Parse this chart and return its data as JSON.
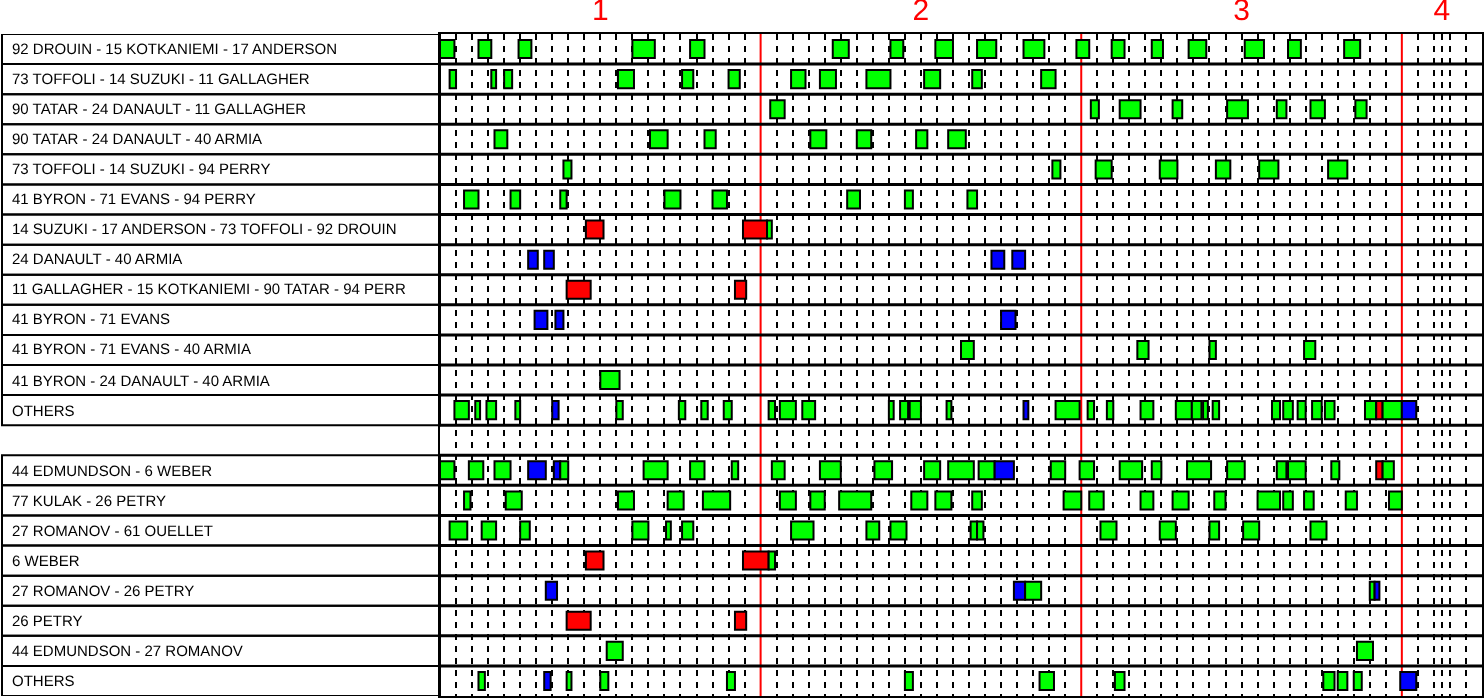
{
  "chart_data": {
    "type": "bar",
    "orientation": "horizontal",
    "grid": "x",
    "xlim": [
      0.5,
      3.75
    ],
    "xticks": [
      {
        "value": 0.55,
        "label": null
      },
      {
        "value": 0.6,
        "label": null
      },
      {
        "value": 0.65,
        "label": null
      },
      {
        "value": 0.7,
        "label": null
      },
      {
        "value": 0.75,
        "label": null
      },
      {
        "value": 0.8,
        "label": null
      },
      {
        "value": 0.85,
        "label": null
      },
      {
        "value": 0.9,
        "label": null
      },
      {
        "value": 0.95,
        "label": null
      },
      1,
      {
        "value": 1.05,
        "label": null
      },
      {
        "value": 1.1,
        "label": null
      },
      {
        "value": 1.15,
        "label": null
      },
      {
        "value": 1.2,
        "label": null
      },
      {
        "value": 1.25,
        "label": null
      },
      {
        "value": 1.3,
        "label": null
      },
      {
        "value": 1.35,
        "label": null
      },
      {
        "value": 1.4,
        "label": null
      },
      {
        "value": 1.45,
        "label": null
      },
      {
        "value": 1.55,
        "label": null
      },
      {
        "value": 1.6,
        "label": null
      },
      {
        "value": 1.65,
        "label": null
      },
      {
        "value": 1.7,
        "label": null
      },
      {
        "value": 1.75,
        "label": null
      },
      {
        "value": 1.8,
        "label": null
      },
      {
        "value": 1.85,
        "label": null
      },
      {
        "value": 1.9,
        "label": null
      },
      {
        "value": 1.95,
        "label": null
      },
      2,
      {
        "value": 2.05,
        "label": null
      },
      {
        "value": 2.1,
        "label": null
      },
      {
        "value": 2.15,
        "label": null
      },
      {
        "value": 2.2,
        "label": null
      },
      {
        "value": 2.25,
        "label": null
      },
      {
        "value": 2.3,
        "label": null
      },
      {
        "value": 2.35,
        "label": null
      },
      {
        "value": 2.4,
        "label": null
      },
      {
        "value": 2.45,
        "label": null
      },
      {
        "value": 2.55,
        "label": null
      },
      {
        "value": 2.6,
        "label": null
      },
      {
        "value": 2.65,
        "label": null
      },
      {
        "value": 2.7,
        "label": null
      },
      {
        "value": 2.75,
        "label": null
      },
      {
        "value": 2.8,
        "label": null
      },
      {
        "value": 2.85,
        "label": null
      },
      {
        "value": 2.9,
        "label": null
      },
      {
        "value": 2.95,
        "label": null
      },
      3,
      {
        "value": 3.05,
        "label": null
      },
      {
        "value": 3.1,
        "label": null
      },
      {
        "value": 3.15,
        "label": null
      },
      {
        "value": 3.2,
        "label": null
      },
      {
        "value": 3.25,
        "label": null
      },
      {
        "value": 3.3,
        "label": null
      },
      {
        "value": 3.35,
        "label": null
      },
      {
        "value": 3.4,
        "label": null
      },
      {
        "value": 3.45,
        "label": null
      },
      {
        "value": 3.55,
        "label": null
      },
      {
        "value": 3.6,
        "label": null
      },
      {
        "value": 3.625,
        "label": "4"
      },
      {
        "value": 3.65,
        "label": null
      },
      {
        "value": 3.7,
        "label": null
      }
    ],
    "ref_lines": [
      {
        "axis": "x",
        "value": 1.5,
        "color": "#ff0000"
      },
      {
        "axis": "x",
        "value": 2.5,
        "color": "#ff0000"
      },
      {
        "axis": "x",
        "value": 3.5,
        "color": "#ff0000"
      }
    ],
    "categories": [
      "92 DROUIN - 15 KOTKANIEMI - 17 ANDERSON",
      "73 TOFFOLI - 14 SUZUKI - 11 GALLAGHER",
      "90 TATAR - 24 DANAULT - 11 GALLAGHER",
      "90 TATAR - 24 DANAULT - 40 ARMIA",
      "73 TOFFOLI - 14 SUZUKI - 94 PERRY",
      "41 BYRON - 71 EVANS - 94 PERRY",
      "14 SUZUKI - 17 ANDERSON - 73 TOFFOLI - 92 DROUIN",
      "24 DANAULT - 40 ARMIA",
      "11 GALLAGHER - 15 KOTKANIEMI - 90 TATAR - 94 PERR",
      "41 BYRON - 71 EVANS",
      "41 BYRON - 71 EVANS - 40 ARMIA",
      "41 BYRON - 24 DANAULT - 40 ARMIA",
      "OTHERS",
      null,
      "44 EDMUNDSON - 6 WEBER",
      "77 KULAK - 26 PETRY",
      "27 ROMANOV - 61 OUELLET",
      "6 WEBER",
      "27 ROMANOV - 26 PETRY",
      "26 PETRY",
      "44 EDMUNDSON - 27 ROMANOV",
      "OTHERS"
    ],
    "series": [
      {
        "colors": [
          "#00ff00",
          "#00ff00",
          "#00ff00",
          "#00ff00",
          "#00ff00",
          "#00ff00",
          "#ff0000",
          "#0000ff",
          "#ff0000",
          "#0000ff",
          "#00ff00",
          "#00ff00",
          "#00ff00",
          null,
          "#00ff00",
          "#00ff00",
          "#00ff00",
          "#ff0000",
          "#0000ff",
          "#ff0000",
          "#00ff00",
          "#00ff00"
        ],
        "base": [
          0.5,
          0.53,
          1.53,
          0.67,
          0.885,
          0.575,
          0.955,
          0.775,
          0.895,
          0.795,
          2.125,
          1.0,
          0.545,
          null,
          0.5,
          0.575,
          0.53,
          0.955,
          0.83,
          0.895,
          1.02,
          0.62
        ],
        "values": [
          0.045,
          0.02,
          0.045,
          0.04,
          0.025,
          0.045,
          0.055,
          0.03,
          0.075,
          0.04,
          0.04,
          0.06,
          0.045,
          null,
          0.045,
          0.02,
          0.055,
          0.055,
          0.035,
          0.075,
          0.05,
          0.02
        ]
      },
      {
        "colors": [
          "#00ff00",
          "#00ff00",
          "#00ff00",
          "#00ff00",
          "#00ff00",
          "#00ff00",
          "#ff0000",
          "#0000ff",
          "#ff0000",
          "#0000ff",
          "#00ff00",
          null,
          "#00ff00",
          null,
          "#00ff00",
          "#00ff00",
          "#00ff00",
          "#ff0000",
          "#0000ff",
          "#ff0000",
          "#00ff00",
          "#0000ff"
        ],
        "base": [
          0.62,
          0.66,
          2.53,
          1.155,
          2.41,
          0.72,
          1.445,
          0.825,
          1.42,
          0.86,
          2.675,
          null,
          0.61,
          null,
          0.59,
          0.705,
          0.63,
          1.445,
          2.29,
          1.42,
          3.36,
          0.825
        ],
        "values": [
          0.04,
          0.015,
          0.025,
          0.055,
          0.025,
          0.03,
          0.075,
          0.03,
          0.035,
          0.025,
          0.035,
          null,
          0.015,
          null,
          0.045,
          0.05,
          0.045,
          0.08,
          0.035,
          0.035,
          0.05,
          0.02
        ]
      },
      {
        "colors": [
          "#00ff00",
          "#00ff00",
          "#00ff00",
          "#00ff00",
          "#00ff00",
          "#00ff00",
          "#00ff00",
          "#0000ff",
          null,
          "#0000ff",
          "#00ff00",
          null,
          "#00ff00",
          null,
          "#00ff00",
          "#00ff00",
          "#00ff00",
          "#00ff00",
          "#00ff00",
          null,
          null,
          "#00ff00"
        ],
        "base": [
          0.745,
          0.7,
          2.62,
          1.325,
          2.545,
          0.875,
          1.52,
          2.22,
          null,
          2.25,
          2.9,
          null,
          0.645,
          null,
          0.67,
          1.055,
          0.75,
          1.525,
          2.325,
          null,
          null,
          0.895
        ],
        "values": [
          0.04,
          0.025,
          0.065,
          0.035,
          0.05,
          0.02,
          0.015,
          0.04,
          null,
          0.045,
          0.02,
          null,
          0.03,
          null,
          0.05,
          0.05,
          0.03,
          0.02,
          0.05,
          null,
          null,
          0.015
        ]
      },
      {
        "colors": [
          "#00ff00",
          "#00ff00",
          "#00ff00",
          "#00ff00",
          "#00ff00",
          "#00ff00",
          null,
          "#0000ff",
          null,
          null,
          "#00ff00",
          null,
          "#00ff00",
          null,
          "#0000ff",
          "#00ff00",
          "#00ff00",
          null,
          "#00ff00",
          null,
          null,
          "#00ff00"
        ],
        "base": [
          1.1,
          1.055,
          2.785,
          1.655,
          2.745,
          1.2,
          null,
          2.285,
          null,
          null,
          3.195,
          null,
          0.735,
          null,
          0.775,
          1.21,
          1.1,
          null,
          3.4,
          null,
          null,
          1.0
        ],
        "values": [
          0.07,
          0.05,
          0.03,
          0.05,
          0.055,
          0.05,
          null,
          0.04,
          null,
          null,
          0.035,
          null,
          0.015,
          null,
          0.055,
          0.05,
          0.05,
          null,
          0.015,
          null,
          null,
          0.025
        ]
      },
      {
        "colors": [
          "#00ff00",
          "#00ff00",
          "#00ff00",
          "#00ff00",
          "#00ff00",
          "#00ff00",
          null,
          null,
          null,
          null,
          null,
          null,
          "#0000ff",
          null,
          "#0000ff",
          "#00ff00",
          "#00ff00",
          null,
          "#0000ff",
          null,
          null,
          "#00ff00"
        ],
        "base": [
          1.28,
          1.255,
          2.955,
          1.8,
          2.92,
          1.35,
          null,
          null,
          null,
          null,
          null,
          null,
          0.85,
          null,
          0.855,
          1.32,
          1.205,
          null,
          3.415,
          null,
          null,
          1.395
        ],
        "values": [
          0.045,
          0.035,
          0.065,
          0.045,
          0.045,
          0.045,
          null,
          null,
          null,
          null,
          null,
          null,
          0.02,
          null,
          0.02,
          0.085,
          0.015,
          null,
          0.015,
          null,
          null,
          0.025
        ]
      },
      {
        "color": "#00ff00",
        "base": [
          1.725,
          1.4,
          3.11,
          1.985,
          3.055,
          1.77,
          null,
          null,
          null,
          null,
          null,
          null,
          1.05,
          null,
          0.875,
          1.56,
          1.255,
          null,
          null,
          null,
          null,
          1.95
        ],
        "values": [
          0.05,
          0.035,
          0.03,
          0.035,
          0.06,
          0.04,
          null,
          null,
          null,
          null,
          null,
          null,
          0.02,
          null,
          0.025,
          0.05,
          0.035,
          null,
          null,
          null,
          null,
          0.025
        ]
      },
      {
        "color": "#00ff00",
        "base": [
          1.905,
          1.595,
          3.215,
          2.085,
          3.27,
          1.95,
          null,
          null,
          null,
          null,
          null,
          null,
          1.245,
          null,
          1.135,
          1.655,
          1.595,
          null,
          null,
          null,
          null,
          2.37
        ],
        "values": [
          0.04,
          0.045,
          0.045,
          0.055,
          0.06,
          0.025,
          null,
          null,
          null,
          null,
          null,
          null,
          0.02,
          null,
          0.075,
          0.045,
          0.07,
          null,
          null,
          null,
          null,
          0.045
        ]
      },
      {
        "color": "#00ff00",
        "base": [
          2.045,
          1.685,
          3.355,
          null,
          null,
          2.145,
          null,
          null,
          null,
          null,
          null,
          null,
          1.315,
          null,
          1.28,
          1.745,
          1.83,
          null,
          null,
          null,
          null,
          2.605
        ],
        "values": [
          0.055,
          0.05,
          0.035,
          null,
          null,
          0.03,
          null,
          null,
          null,
          null,
          null,
          null,
          0.02,
          null,
          0.045,
          0.1,
          0.04,
          null,
          null,
          null,
          null,
          0.03
        ]
      },
      {
        "color": "#00ff00",
        "base": [
          2.175,
          1.83,
          null,
          null,
          null,
          null,
          null,
          null,
          null,
          null,
          null,
          null,
          1.385,
          null,
          1.41,
          1.97,
          1.905,
          null,
          null,
          null,
          null,
          3.255
        ],
        "values": [
          0.06,
          0.075,
          null,
          null,
          null,
          null,
          null,
          null,
          null,
          null,
          null,
          null,
          0.025,
          null,
          0.02,
          0.05,
          0.05,
          null,
          null,
          null,
          null,
          0.035
        ]
      },
      {
        "color": "#00ff00",
        "base": [
          2.32,
          2.01,
          null,
          null,
          null,
          null,
          null,
          null,
          null,
          null,
          null,
          null,
          1.525,
          null,
          1.535,
          2.045,
          2.155,
          null,
          null,
          null,
          null,
          3.3
        ],
        "values": [
          0.065,
          0.05,
          null,
          null,
          null,
          null,
          null,
          null,
          null,
          null,
          null,
          null,
          0.02,
          null,
          0.04,
          0.05,
          0.02,
          null,
          null,
          null,
          null,
          0.03
        ]
      },
      {
        "color": "#00ff00",
        "base": [
          2.485,
          2.16,
          null,
          null,
          null,
          null,
          null,
          null,
          null,
          null,
          null,
          null,
          1.56,
          null,
          1.685,
          2.16,
          2.175,
          null,
          null,
          null,
          null,
          3.35
        ],
        "values": [
          0.04,
          0.03,
          null,
          null,
          null,
          null,
          null,
          null,
          null,
          null,
          null,
          null,
          0.05,
          null,
          0.065,
          0.03,
          0.02,
          null,
          null,
          null,
          null,
          0.025
        ]
      },
      {
        "colors": [
          "#00ff00",
          "#00ff00",
          null,
          null,
          null,
          null,
          null,
          null,
          null,
          null,
          null,
          null,
          "#00ff00",
          null,
          "#00ff00",
          "#00ff00",
          "#00ff00",
          null,
          null,
          null,
          null,
          "#0000ff"
        ],
        "base": [
          2.595,
          2.375,
          null,
          null,
          null,
          null,
          null,
          null,
          null,
          null,
          null,
          null,
          1.63,
          null,
          1.855,
          2.445,
          2.56,
          null,
          null,
          null,
          null,
          3.495
        ],
        "values": [
          0.04,
          0.045,
          null,
          null,
          null,
          null,
          null,
          null,
          null,
          null,
          null,
          null,
          0.04,
          null,
          0.055,
          0.055,
          0.05,
          null,
          null,
          null,
          null,
          0.05
        ]
      },
      {
        "color": "#00ff00",
        "base": [
          2.72,
          null,
          null,
          null,
          null,
          null,
          null,
          null,
          null,
          null,
          null,
          null,
          1.9,
          null,
          2.01,
          2.525,
          2.745,
          null,
          null,
          null,
          null,
          null
        ],
        "values": [
          0.035,
          null,
          null,
          null,
          null,
          null,
          null,
          null,
          null,
          null,
          null,
          null,
          0.015,
          null,
          0.05,
          0.045,
          0.05,
          null,
          null,
          null,
          null,
          null
        ]
      },
      {
        "color": "#00ff00",
        "base": [
          2.835,
          null,
          null,
          null,
          null,
          null,
          null,
          null,
          null,
          null,
          null,
          null,
          1.935,
          null,
          2.085,
          2.685,
          2.9,
          null,
          null,
          null,
          null,
          null
        ],
        "values": [
          0.055,
          null,
          null,
          null,
          null,
          null,
          null,
          null,
          null,
          null,
          null,
          null,
          0.025,
          null,
          0.08,
          0.04,
          0.03,
          null,
          null,
          null,
          null,
          null
        ]
      },
      {
        "color": "#00ff00",
        "base": [
          3.01,
          null,
          null,
          null,
          null,
          null,
          null,
          null,
          null,
          null,
          null,
          null,
          1.965,
          null,
          2.18,
          2.785,
          3.005,
          null,
          null,
          null,
          null,
          null
        ],
        "values": [
          0.06,
          null,
          null,
          null,
          null,
          null,
          null,
          null,
          null,
          null,
          null,
          null,
          0.035,
          null,
          0.05,
          0.05,
          0.05,
          null,
          null,
          null,
          null,
          null
        ]
      },
      {
        "colors": [
          "#00ff00",
          null,
          null,
          null,
          null,
          null,
          null,
          null,
          null,
          null,
          null,
          null,
          "#00ff00",
          null,
          "#0000ff",
          "#00ff00",
          "#00ff00",
          null,
          null,
          null,
          null,
          null
        ],
        "base": [
          3.145,
          null,
          null,
          null,
          null,
          null,
          null,
          null,
          null,
          null,
          null,
          null,
          2.08,
          null,
          2.23,
          2.915,
          3.215,
          null,
          null,
          null,
          null,
          null
        ],
        "values": [
          0.04,
          null,
          null,
          null,
          null,
          null,
          null,
          null,
          null,
          null,
          null,
          null,
          0.015,
          null,
          0.06,
          0.035,
          0.05,
          null,
          null,
          null,
          null,
          null
        ]
      },
      {
        "colors": [
          "#00ff00",
          null,
          null,
          null,
          null,
          null,
          null,
          null,
          null,
          null,
          null,
          null,
          "#0000ff",
          null,
          "#00ff00",
          "#00ff00",
          null,
          null,
          null,
          null,
          null,
          null
        ],
        "base": [
          3.32,
          null,
          null,
          null,
          null,
          null,
          null,
          null,
          null,
          null,
          null,
          null,
          2.32,
          null,
          2.405,
          3.05,
          null,
          null,
          null,
          null,
          null,
          null
        ],
        "values": [
          0.05,
          null,
          null,
          null,
          null,
          null,
          null,
          null,
          null,
          null,
          null,
          null,
          0.015,
          null,
          0.045,
          0.07,
          null,
          null,
          null,
          null,
          null,
          null
        ]
      },
      {
        "color": "#00ff00",
        "base": [
          null,
          null,
          null,
          null,
          null,
          null,
          null,
          null,
          null,
          null,
          null,
          null,
          2.42,
          null,
          2.495,
          3.13,
          null,
          null,
          null,
          null,
          null,
          null
        ],
        "values": [
          null,
          null,
          null,
          null,
          null,
          null,
          null,
          null,
          null,
          null,
          null,
          null,
          0.075,
          null,
          0.045,
          0.03,
          null,
          null,
          null,
          null,
          null,
          null
        ]
      },
      {
        "color": "#00ff00",
        "base": [
          null,
          null,
          null,
          null,
          null,
          null,
          null,
          null,
          null,
          null,
          null,
          null,
          2.52,
          null,
          2.62,
          3.195,
          null,
          null,
          null,
          null,
          null,
          null
        ],
        "values": [
          null,
          null,
          null,
          null,
          null,
          null,
          null,
          null,
          null,
          null,
          null,
          null,
          0.02,
          null,
          0.07,
          0.03,
          null,
          null,
          null,
          null,
          null,
          null
        ]
      },
      {
        "color": "#00ff00",
        "base": [
          null,
          null,
          null,
          null,
          null,
          null,
          null,
          null,
          null,
          null,
          null,
          null,
          2.58,
          null,
          2.72,
          3.325,
          null,
          null,
          null,
          null,
          null,
          null
        ],
        "values": [
          null,
          null,
          null,
          null,
          null,
          null,
          null,
          null,
          null,
          null,
          null,
          null,
          0.02,
          null,
          0.03,
          0.035,
          null,
          null,
          null,
          null,
          null,
          null
        ]
      },
      {
        "color": "#00ff00",
        "base": [
          null,
          null,
          null,
          null,
          null,
          null,
          null,
          null,
          null,
          null,
          null,
          null,
          2.685,
          null,
          2.83,
          3.46,
          null,
          null,
          null,
          null,
          null,
          null
        ],
        "values": [
          null,
          null,
          null,
          null,
          null,
          null,
          null,
          null,
          null,
          null,
          null,
          null,
          0.04,
          null,
          0.075,
          0.04,
          null,
          null,
          null,
          null,
          null,
          null
        ]
      },
      {
        "color": "#00ff00",
        "base": [
          null,
          null,
          null,
          null,
          null,
          null,
          null,
          null,
          null,
          null,
          null,
          null,
          2.795,
          null,
          2.955,
          null,
          null,
          null,
          null,
          null,
          null,
          null
        ],
        "values": [
          null,
          null,
          null,
          null,
          null,
          null,
          null,
          null,
          null,
          null,
          null,
          null,
          0.05,
          null,
          0.055,
          null,
          null,
          null,
          null,
          null,
          null,
          null
        ]
      },
      {
        "color": "#00ff00",
        "base": [
          null,
          null,
          null,
          null,
          null,
          null,
          null,
          null,
          null,
          null,
          null,
          null,
          2.845,
          null,
          3.11,
          null,
          null,
          null,
          null,
          null,
          null,
          null
        ],
        "values": [
          null,
          null,
          null,
          null,
          null,
          null,
          null,
          null,
          null,
          null,
          null,
          null,
          0.03,
          null,
          0.03,
          null,
          null,
          null,
          null,
          null,
          null,
          null
        ]
      },
      {
        "color": "#00ff00",
        "base": [
          null,
          null,
          null,
          null,
          null,
          null,
          null,
          null,
          null,
          null,
          null,
          null,
          2.88,
          null,
          3.145,
          null,
          null,
          null,
          null,
          null,
          null,
          null
        ],
        "values": [
          null,
          null,
          null,
          null,
          null,
          null,
          null,
          null,
          null,
          null,
          null,
          null,
          0.015,
          null,
          0.055,
          null,
          null,
          null,
          null,
          null,
          null,
          null
        ]
      },
      {
        "color": "#00ff00",
        "base": [
          null,
          null,
          null,
          null,
          null,
          null,
          null,
          null,
          null,
          null,
          null,
          null,
          2.91,
          null,
          3.28,
          null,
          null,
          null,
          null,
          null,
          null,
          null
        ],
        "values": [
          null,
          null,
          null,
          null,
          null,
          null,
          null,
          null,
          null,
          null,
          null,
          null,
          0.02,
          null,
          0.025,
          null,
          null,
          null,
          null,
          null,
          null,
          null
        ]
      },
      {
        "colors": [
          null,
          null,
          null,
          null,
          null,
          null,
          null,
          null,
          null,
          null,
          null,
          null,
          "#00ff00",
          null,
          "#ff0000",
          null,
          null,
          null,
          null,
          null,
          null,
          null
        ],
        "base": [
          null,
          null,
          null,
          null,
          null,
          null,
          null,
          null,
          null,
          null,
          null,
          null,
          3.095,
          null,
          3.42,
          null,
          null,
          null,
          null,
          null,
          null,
          null
        ],
        "values": [
          null,
          null,
          null,
          null,
          null,
          null,
          null,
          null,
          null,
          null,
          null,
          null,
          0.025,
          null,
          0.02,
          null,
          null,
          null,
          null,
          null,
          null,
          null
        ]
      },
      {
        "color": "#00ff00",
        "base": [
          null,
          null,
          null,
          null,
          null,
          null,
          null,
          null,
          null,
          null,
          null,
          null,
          3.13,
          null,
          3.44,
          null,
          null,
          null,
          null,
          null,
          null,
          null
        ],
        "values": [
          null,
          null,
          null,
          null,
          null,
          null,
          null,
          null,
          null,
          null,
          null,
          null,
          0.03,
          null,
          0.035,
          null,
          null,
          null,
          null,
          null,
          null,
          null
        ]
      },
      {
        "color": "#00ff00",
        "base": [
          null,
          null,
          null,
          null,
          null,
          null,
          null,
          null,
          null,
          null,
          null,
          null,
          3.175,
          null,
          null,
          null,
          null,
          null,
          null,
          null,
          null,
          null
        ],
        "values": [
          null,
          null,
          null,
          null,
          null,
          null,
          null,
          null,
          null,
          null,
          null,
          null,
          0.025,
          null,
          null,
          null,
          null,
          null,
          null,
          null,
          null,
          null
        ]
      },
      {
        "color": "#00ff00",
        "base": [
          null,
          null,
          null,
          null,
          null,
          null,
          null,
          null,
          null,
          null,
          null,
          null,
          3.22,
          null,
          null,
          null,
          null,
          null,
          null,
          null,
          null,
          null
        ],
        "values": [
          null,
          null,
          null,
          null,
          null,
          null,
          null,
          null,
          null,
          null,
          null,
          null,
          0.03,
          null,
          null,
          null,
          null,
          null,
          null,
          null,
          null,
          null
        ]
      },
      {
        "color": "#00ff00",
        "base": [
          null,
          null,
          null,
          null,
          null,
          null,
          null,
          null,
          null,
          null,
          null,
          null,
          3.26,
          null,
          null,
          null,
          null,
          null,
          null,
          null,
          null,
          null
        ],
        "values": [
          null,
          null,
          null,
          null,
          null,
          null,
          null,
          null,
          null,
          null,
          null,
          null,
          0.03,
          null,
          null,
          null,
          null,
          null,
          null,
          null,
          null,
          null
        ]
      },
      {
        "color": "#00ff00",
        "base": [
          null,
          null,
          null,
          null,
          null,
          null,
          null,
          null,
          null,
          null,
          null,
          null,
          3.385,
          null,
          null,
          null,
          null,
          null,
          null,
          null,
          null,
          null
        ],
        "values": [
          null,
          null,
          null,
          null,
          null,
          null,
          null,
          null,
          null,
          null,
          null,
          null,
          0.035,
          null,
          null,
          null,
          null,
          null,
          null,
          null,
          null,
          null
        ]
      },
      {
        "color": "#ff0000",
        "base": [
          null,
          null,
          null,
          null,
          null,
          null,
          null,
          null,
          null,
          null,
          null,
          null,
          3.42,
          null,
          null,
          null,
          null,
          null,
          null,
          null,
          null,
          null
        ],
        "values": [
          null,
          null,
          null,
          null,
          null,
          null,
          null,
          null,
          null,
          null,
          null,
          null,
          0.02,
          null,
          null,
          null,
          null,
          null,
          null,
          null,
          null,
          null
        ]
      },
      {
        "color": "#00ff00",
        "base": [
          null,
          null,
          null,
          null,
          null,
          null,
          null,
          null,
          null,
          null,
          null,
          null,
          3.44,
          null,
          null,
          null,
          null,
          null,
          null,
          null,
          null,
          null
        ],
        "values": [
          null,
          null,
          null,
          null,
          null,
          null,
          null,
          null,
          null,
          null,
          null,
          null,
          0.06,
          null,
          null,
          null,
          null,
          null,
          null,
          null,
          null,
          null
        ]
      },
      {
        "color": "#0000ff",
        "base": [
          null,
          null,
          null,
          null,
          null,
          null,
          null,
          null,
          null,
          null,
          null,
          null,
          3.5,
          null,
          null,
          null,
          null,
          null,
          null,
          null,
          null,
          null
        ],
        "values": [
          null,
          null,
          null,
          null,
          null,
          null,
          null,
          null,
          null,
          null,
          null,
          null,
          0.045,
          null,
          null,
          null,
          null,
          null,
          null,
          null,
          null,
          null
        ]
      }
    ]
  }
}
